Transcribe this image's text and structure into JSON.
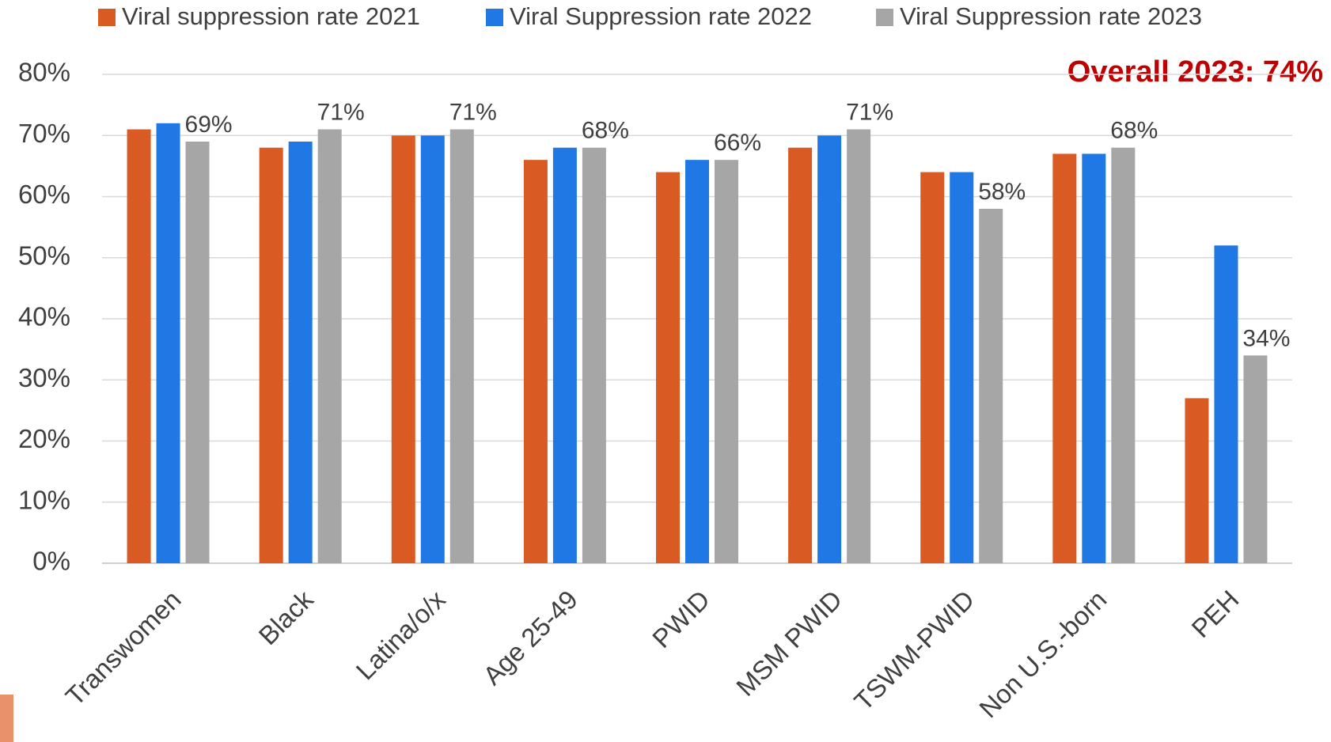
{
  "chart_data": {
    "type": "bar",
    "annotation": "Overall 2023: 74%",
    "categories": [
      "Transwomen",
      "Black",
      "Latina/o/x",
      "Age 25-49",
      "PWID",
      "MSM PWID",
      "TSWM-PWID",
      "Non U.S.-born",
      "PEH"
    ],
    "series": [
      {
        "name": "Viral suppression rate 2021",
        "color": "#d95a22",
        "values": [
          71,
          68,
          70,
          66,
          64,
          68,
          64,
          67,
          27
        ]
      },
      {
        "name": "Viral Suppression rate 2022",
        "color": "#1f78e3",
        "values": [
          72,
          69,
          70,
          68,
          66,
          70,
          64,
          67,
          52
        ]
      },
      {
        "name": "Viral Suppression rate 2023",
        "color": "#a6a6a6",
        "values": [
          69,
          71,
          71,
          68,
          66,
          71,
          58,
          68,
          34
        ],
        "value_labels": [
          "69%",
          "71%",
          "71%",
          "68%",
          "66%",
          "71%",
          "58%",
          "68%",
          "34%"
        ]
      }
    ],
    "ylim": [
      0,
      80
    ],
    "yticks": [
      {
        "value": 0,
        "label": "0%"
      },
      {
        "value": 10,
        "label": "10%"
      },
      {
        "value": 20,
        "label": "20%"
      },
      {
        "value": 30,
        "label": "30%"
      },
      {
        "value": 40,
        "label": "40%"
      },
      {
        "value": 50,
        "label": "50%"
      },
      {
        "value": 60,
        "label": "60%"
      },
      {
        "value": 70,
        "label": "70%"
      },
      {
        "value": 80,
        "label": "80%"
      }
    ],
    "grid": true
  }
}
